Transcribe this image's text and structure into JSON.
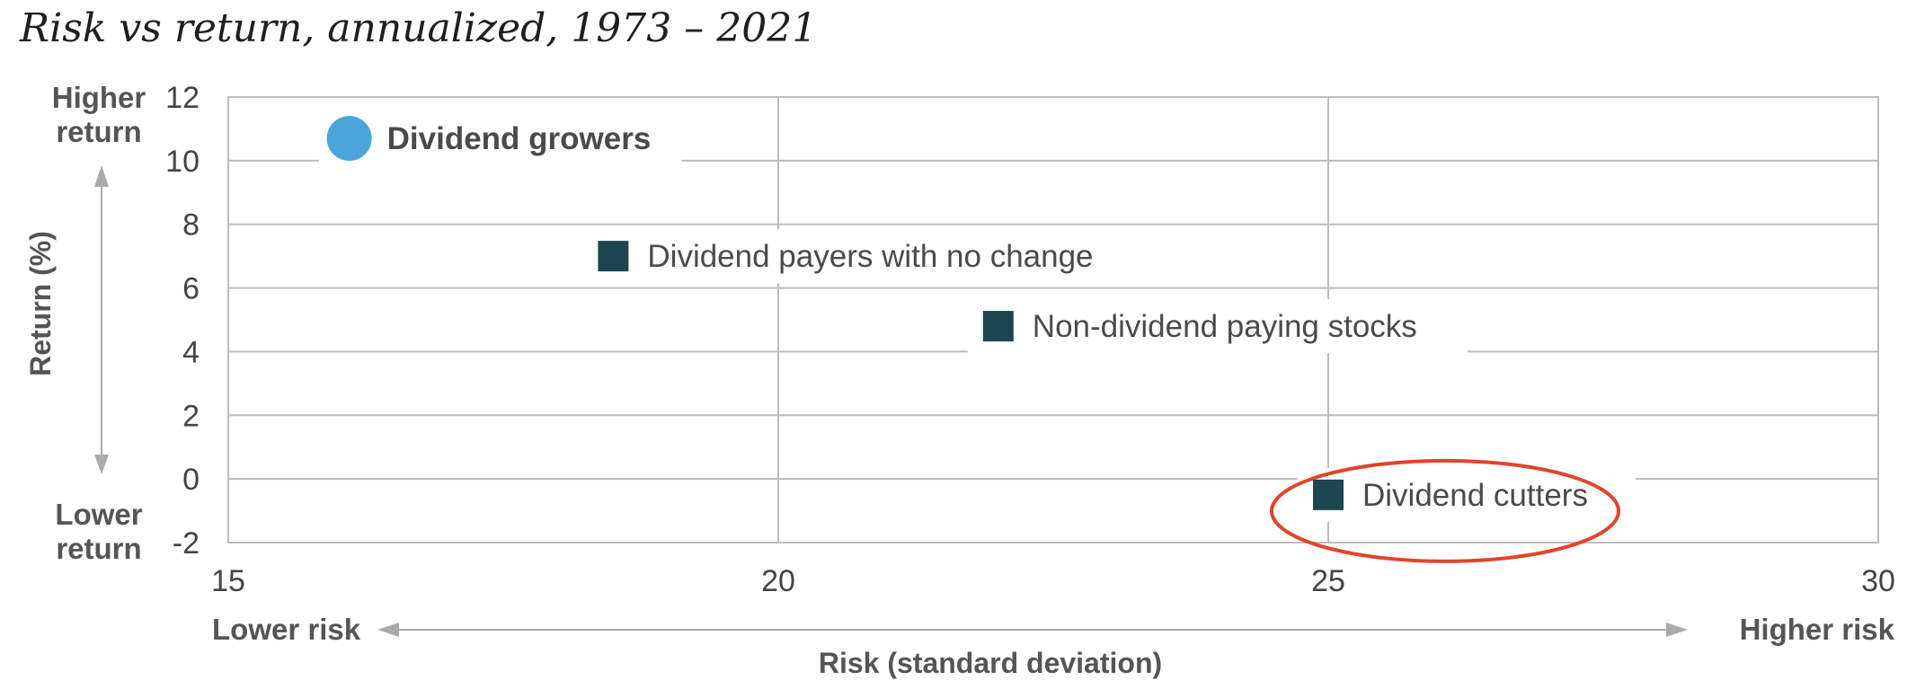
{
  "chart_data": {
    "type": "scatter",
    "title": "Risk vs return, annualized, 1973 – 2021",
    "xlabel": "Risk (standard deviation)",
    "ylabel": "Return (%)",
    "xlim": [
      15,
      30
    ],
    "ylim": [
      -2,
      12
    ],
    "x_ticks": [
      "15",
      "20",
      "25",
      "30"
    ],
    "y_ticks": [
      "12",
      "10",
      "8",
      "6",
      "4",
      "2",
      "0",
      "-2"
    ],
    "x_edge_labels": {
      "low": "Lower risk",
      "high": "Higher risk"
    },
    "y_edge_labels": {
      "high": "Higher\nreturn",
      "low": "Lower\nreturn"
    },
    "grid": true,
    "points": [
      {
        "label": "Dividend growers",
        "x": 16.1,
        "y": 10.7,
        "shape": "circle",
        "color": "#4AA6D9",
        "bold": true
      },
      {
        "label": "Dividend payers with no change",
        "x": 18.5,
        "y": 7.0,
        "shape": "square",
        "color": "#1D4650",
        "bold": false
      },
      {
        "label": "Non-dividend paying stocks",
        "x": 22.0,
        "y": 4.8,
        "shape": "square",
        "color": "#1D4650",
        "bold": false
      },
      {
        "label": "Dividend cutters",
        "x": 25.0,
        "y": -0.5,
        "shape": "square",
        "color": "#1D4650",
        "bold": false,
        "highlighted": true
      }
    ],
    "highlight_color": "#E0452C",
    "grid_color": "#BDBDBD",
    "arrow_color": "#AAAAAA"
  }
}
